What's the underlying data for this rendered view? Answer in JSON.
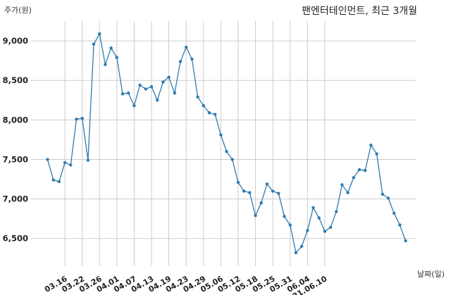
{
  "chart_data": {
    "type": "line",
    "title": "팬엔터테인먼트, 최근 3개월",
    "ylabel": "주가(원)",
    "xlabel": "날짜(일)",
    "ylim": [
      6150,
      9250
    ],
    "yticks": [
      6500,
      7000,
      7500,
      8000,
      8500,
      9000
    ],
    "ytick_labels": [
      "6,500",
      "7,000",
      "7,500",
      "8,000",
      "8,500",
      "9,000"
    ],
    "xtick_labels": [
      "03.16",
      "03.22",
      "03.26",
      "04.01",
      "04.07",
      "04.13",
      "04.19",
      "04.23",
      "04.29",
      "05.06",
      "05.12",
      "05.18",
      "05.25",
      "05.31",
      "06.04",
      "21.06.10"
    ],
    "xtick_positions": [
      3,
      6,
      9,
      12,
      15,
      18,
      21,
      24,
      27,
      30,
      33,
      36,
      39,
      42,
      45,
      48
    ],
    "grid": true,
    "line_color": "#2e7bb0",
    "values": [
      7500,
      7240,
      7220,
      7460,
      7430,
      8010,
      8020,
      7490,
      8960,
      9090,
      8700,
      8910,
      8790,
      8330,
      8340,
      8180,
      8440,
      8390,
      8420,
      8250,
      8480,
      8540,
      8340,
      8740,
      8920,
      8770,
      8290,
      8180,
      8090,
      8070,
      7810,
      7600,
      7500,
      7210,
      7100,
      7080,
      6790,
      6950,
      7190,
      7100,
      7070,
      6780,
      6670,
      6320,
      6400,
      6600,
      6890,
      6760,
      6590,
      6640,
      6840,
      7180,
      7080,
      7270,
      7370,
      7360,
      7680,
      7570,
      7060,
      7010,
      6820,
      6670,
      6470
    ]
  }
}
